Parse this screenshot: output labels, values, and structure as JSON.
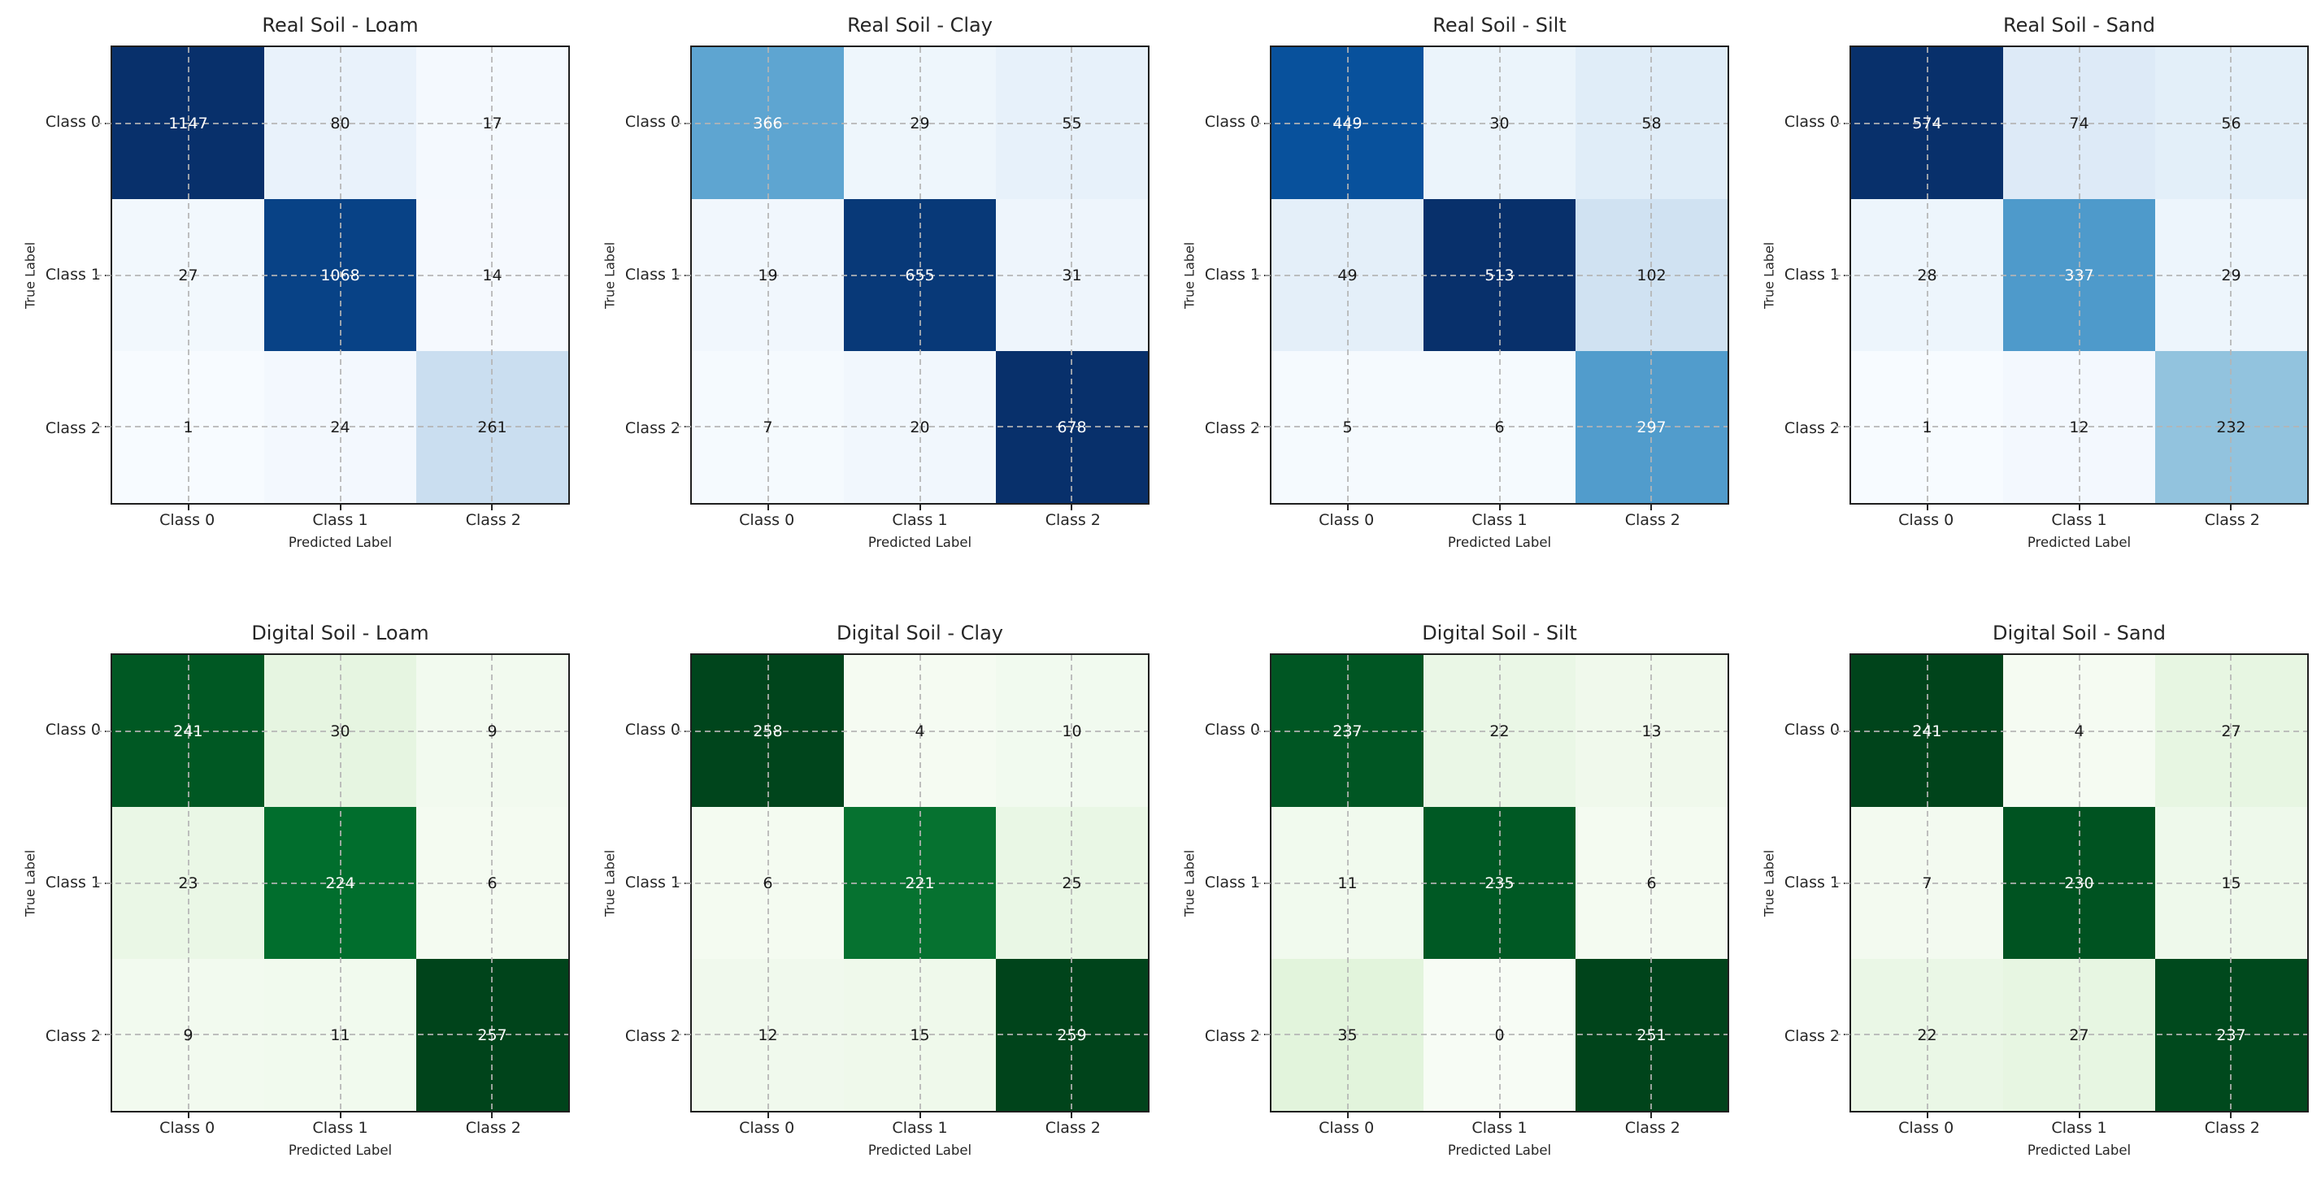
{
  "figure": {
    "rows": 2,
    "cols": 4,
    "background": "#ffffff"
  },
  "colormaps": {
    "Blues": {
      "positions": [
        0,
        0.125,
        0.25,
        0.375,
        0.5,
        0.625,
        0.75,
        0.875,
        1.0
      ],
      "colors": [
        "#f7fbff",
        "#deebf7",
        "#c6dbef",
        "#9ecae1",
        "#6baed6",
        "#4292c6",
        "#2171b5",
        "#08519c",
        "#08306b"
      ]
    },
    "Greens": {
      "positions": [
        0,
        0.125,
        0.25,
        0.375,
        0.5,
        0.625,
        0.75,
        0.875,
        1.0
      ],
      "colors": [
        "#f7fcf5",
        "#e5f5e0",
        "#c7e9c0",
        "#a1d99b",
        "#74c476",
        "#41ab5d",
        "#238b45",
        "#006d2c",
        "#00441b"
      ]
    }
  },
  "text_colors": {
    "dark_cell_text": "#ffffff",
    "light_cell_text": "#1a1a1a"
  },
  "chart_data": [
    {
      "type": "heatmap",
      "title": "Real Soil - Loam",
      "xlabel": "Predicted Label",
      "ylabel": "True Label",
      "x_categories": [
        "Class 0",
        "Class 1",
        "Class 2"
      ],
      "y_categories": [
        "Class 0",
        "Class 1",
        "Class 2"
      ],
      "values": [
        [
          1147,
          80,
          17
        ],
        [
          27,
          1068,
          14
        ],
        [
          1,
          24,
          261
        ]
      ],
      "colormap": "Blues",
      "vmin": 0,
      "grid": "dashed"
    },
    {
      "type": "heatmap",
      "title": "Real Soil - Clay",
      "xlabel": "Predicted Label",
      "ylabel": "True Label",
      "x_categories": [
        "Class 0",
        "Class 1",
        "Class 2"
      ],
      "y_categories": [
        "Class 0",
        "Class 1",
        "Class 2"
      ],
      "values": [
        [
          366,
          29,
          55
        ],
        [
          19,
          655,
          31
        ],
        [
          7,
          20,
          678
        ]
      ],
      "colormap": "Blues",
      "vmin": 0,
      "grid": "dashed"
    },
    {
      "type": "heatmap",
      "title": "Real Soil - Silt",
      "xlabel": "Predicted Label",
      "ylabel": "True Label",
      "x_categories": [
        "Class 0",
        "Class 1",
        "Class 2"
      ],
      "y_categories": [
        "Class 0",
        "Class 1",
        "Class 2"
      ],
      "values": [
        [
          449,
          30,
          58
        ],
        [
          49,
          513,
          102
        ],
        [
          5,
          6,
          297
        ]
      ],
      "colormap": "Blues",
      "vmin": 0,
      "grid": "dashed"
    },
    {
      "type": "heatmap",
      "title": "Real Soil - Sand",
      "xlabel": "Predicted Label",
      "ylabel": "True Label",
      "x_categories": [
        "Class 0",
        "Class 1",
        "Class 2"
      ],
      "y_categories": [
        "Class 0",
        "Class 1",
        "Class 2"
      ],
      "values": [
        [
          574,
          74,
          56
        ],
        [
          28,
          337,
          29
        ],
        [
          1,
          12,
          232
        ]
      ],
      "colormap": "Blues",
      "vmin": 0,
      "grid": "dashed"
    },
    {
      "type": "heatmap",
      "title": "Digital Soil - Loam",
      "xlabel": "Predicted Label",
      "ylabel": "True Label",
      "x_categories": [
        "Class 0",
        "Class 1",
        "Class 2"
      ],
      "y_categories": [
        "Class 0",
        "Class 1",
        "Class 2"
      ],
      "values": [
        [
          241,
          30,
          9
        ],
        [
          23,
          224,
          6
        ],
        [
          9,
          11,
          257
        ]
      ],
      "colormap": "Greens",
      "vmin": 0,
      "grid": "dashed"
    },
    {
      "type": "heatmap",
      "title": "Digital Soil - Clay",
      "xlabel": "Predicted Label",
      "ylabel": "True Label",
      "x_categories": [
        "Class 0",
        "Class 1",
        "Class 2"
      ],
      "y_categories": [
        "Class 0",
        "Class 1",
        "Class 2"
      ],
      "values": [
        [
          258,
          4,
          10
        ],
        [
          6,
          221,
          25
        ],
        [
          12,
          15,
          259
        ]
      ],
      "colormap": "Greens",
      "vmin": 0,
      "grid": "dashed"
    },
    {
      "type": "heatmap",
      "title": "Digital Soil - Silt",
      "xlabel": "Predicted Label",
      "ylabel": "True Label",
      "x_categories": [
        "Class 0",
        "Class 1",
        "Class 2"
      ],
      "y_categories": [
        "Class 0",
        "Class 1",
        "Class 2"
      ],
      "values": [
        [
          237,
          22,
          13
        ],
        [
          11,
          235,
          6
        ],
        [
          35,
          0,
          251
        ]
      ],
      "colormap": "Greens",
      "vmin": 0,
      "grid": "dashed"
    },
    {
      "type": "heatmap",
      "title": "Digital Soil - Sand",
      "xlabel": "Predicted Label",
      "ylabel": "True Label",
      "x_categories": [
        "Class 0",
        "Class 1",
        "Class 2"
      ],
      "y_categories": [
        "Class 0",
        "Class 1",
        "Class 2"
      ],
      "values": [
        [
          241,
          4,
          27
        ],
        [
          7,
          230,
          15
        ],
        [
          22,
          27,
          237
        ]
      ],
      "colormap": "Greens",
      "vmin": 0,
      "grid": "dashed"
    }
  ]
}
